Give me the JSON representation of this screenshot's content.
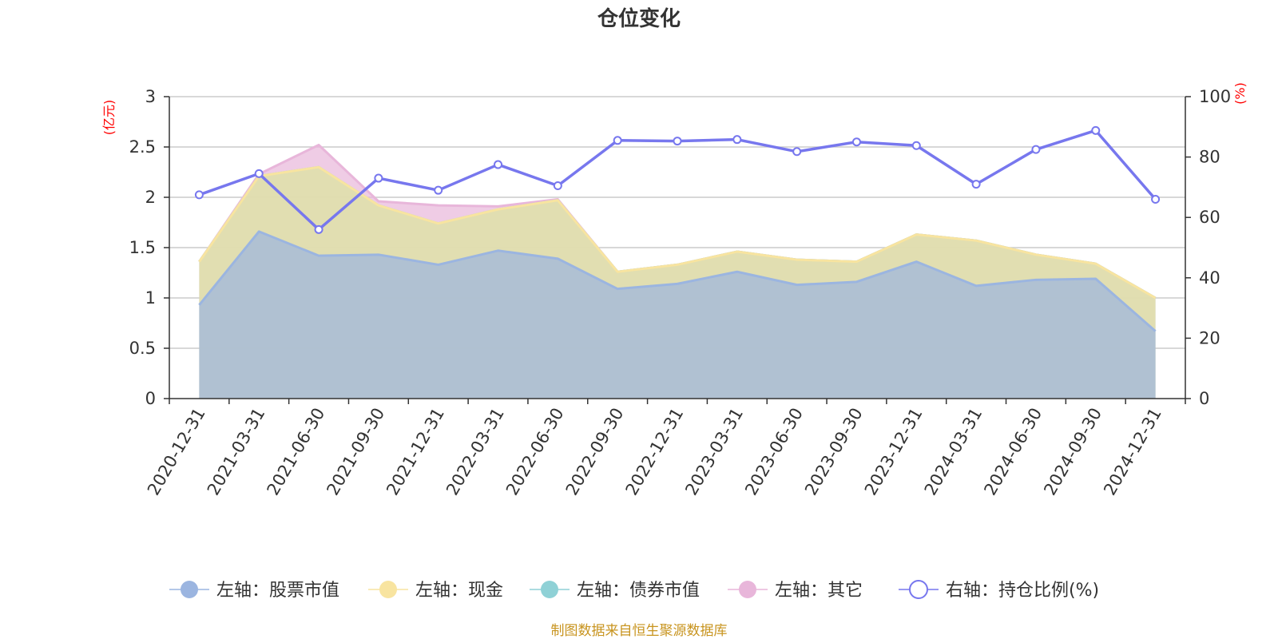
{
  "chart_data": {
    "type": "area",
    "title": "仓位变化",
    "left_unit": "(亿元)",
    "right_unit": "(%)",
    "categories": [
      "2020-12-31",
      "2021-03-31",
      "2021-06-30",
      "2021-09-30",
      "2021-12-31",
      "2022-03-31",
      "2022-06-30",
      "2022-09-30",
      "2022-12-31",
      "2023-03-31",
      "2023-06-30",
      "2023-09-30",
      "2023-12-31",
      "2024-03-31",
      "2024-06-30",
      "2024-09-30",
      "2024-12-31"
    ],
    "ylim_left": [
      0,
      3
    ],
    "yticks_left": [
      "0",
      "0.5",
      "1",
      "1.5",
      "2",
      "2.5",
      "3"
    ],
    "ylim_right": [
      0,
      100
    ],
    "yticks_right": [
      "0",
      "20",
      "40",
      "60",
      "80",
      "100"
    ],
    "series": [
      {
        "name": "左轴：股票市值",
        "axis": "left",
        "stacked": true,
        "color": "#9bb5e0",
        "values": [
          0.93,
          1.66,
          1.42,
          1.43,
          1.33,
          1.47,
          1.39,
          1.09,
          1.14,
          1.26,
          1.13,
          1.16,
          1.36,
          1.12,
          1.18,
          1.19,
          0.67
        ]
      },
      {
        "name": "左轴：现金",
        "axis": "left",
        "stacked": true,
        "color": "#f8e4a0",
        "values": [
          0.43,
          0.55,
          0.88,
          0.49,
          0.41,
          0.41,
          0.58,
          0.17,
          0.19,
          0.2,
          0.25,
          0.2,
          0.27,
          0.45,
          0.25,
          0.15,
          0.33
        ]
      },
      {
        "name": "左轴：债券市值",
        "axis": "left",
        "stacked": true,
        "color": "#8fd1d6",
        "values": [
          0,
          0,
          0,
          0,
          0,
          0,
          0,
          0,
          0,
          0,
          0,
          0,
          0,
          0,
          0,
          0,
          0
        ]
      },
      {
        "name": "左轴：其它",
        "axis": "left",
        "stacked": true,
        "color": "#e8b6da",
        "values": [
          0,
          0.02,
          0.22,
          0.04,
          0.18,
          0.03,
          0.01,
          0,
          0,
          0,
          0,
          0,
          0,
          0,
          0,
          0,
          0
        ]
      },
      {
        "name": "右轴：持仓比例(%)",
        "axis": "right",
        "stacked": false,
        "color": "#7777ee",
        "values": [
          67.5,
          74.5,
          56,
          73,
          69,
          77.5,
          70.5,
          85.5,
          85.3,
          85.8,
          81.8,
          85,
          83.8,
          71,
          82.5,
          88.8,
          66
        ]
      }
    ]
  },
  "source_note": "制图数据来自恒生聚源数据库"
}
